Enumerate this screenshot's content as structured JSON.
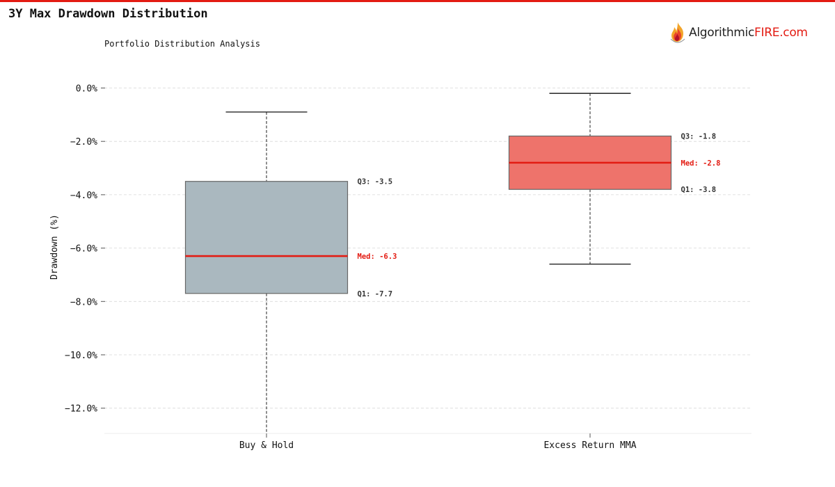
{
  "title": "3Y Max Drawdown Distribution",
  "brand": {
    "logo_part1": "Algorithmic",
    "logo_part2": "FIRE.com",
    "accent_color": "#e31b12",
    "text_color": "#222222"
  },
  "chart_data": {
    "type": "box",
    "subtitle": "Portfolio Distribution Analysis",
    "ylabel": "Drawdown (%)",
    "xlabel": "",
    "ylim": [
      -13,
      0.5
    ],
    "yticks": [
      0,
      -2,
      -4,
      -6,
      -8,
      -10,
      -12
    ],
    "ytick_labels": [
      "0.0%",
      "−2.0%",
      "−4.0%",
      "−6.0%",
      "−8.0%",
      "−10.0%",
      "−12.0%"
    ],
    "grid": true,
    "categories": [
      "Buy & Hold",
      "Excess Return MMA"
    ],
    "boxes": [
      {
        "category": "Buy & Hold",
        "whisker_low": -13.0,
        "q1": -7.7,
        "median": -6.3,
        "q3": -3.5,
        "whisker_high": -0.9,
        "q1_label": "Q1: -7.7",
        "median_label": "Med: -6.3",
        "q3_label": "Q3: -3.5",
        "fill_color": "#aab8bf",
        "median_color": "#e31b12"
      },
      {
        "category": "Excess Return MMA",
        "whisker_low": -6.6,
        "q1": -3.8,
        "median": -2.8,
        "q3": -1.8,
        "whisker_high": -0.2,
        "q1_label": "Q1: -3.8",
        "median_label": "Med: -2.8",
        "q3_label": "Q3: -1.8",
        "fill_color": "#ee736b",
        "median_color": "#e31b12"
      }
    ]
  }
}
